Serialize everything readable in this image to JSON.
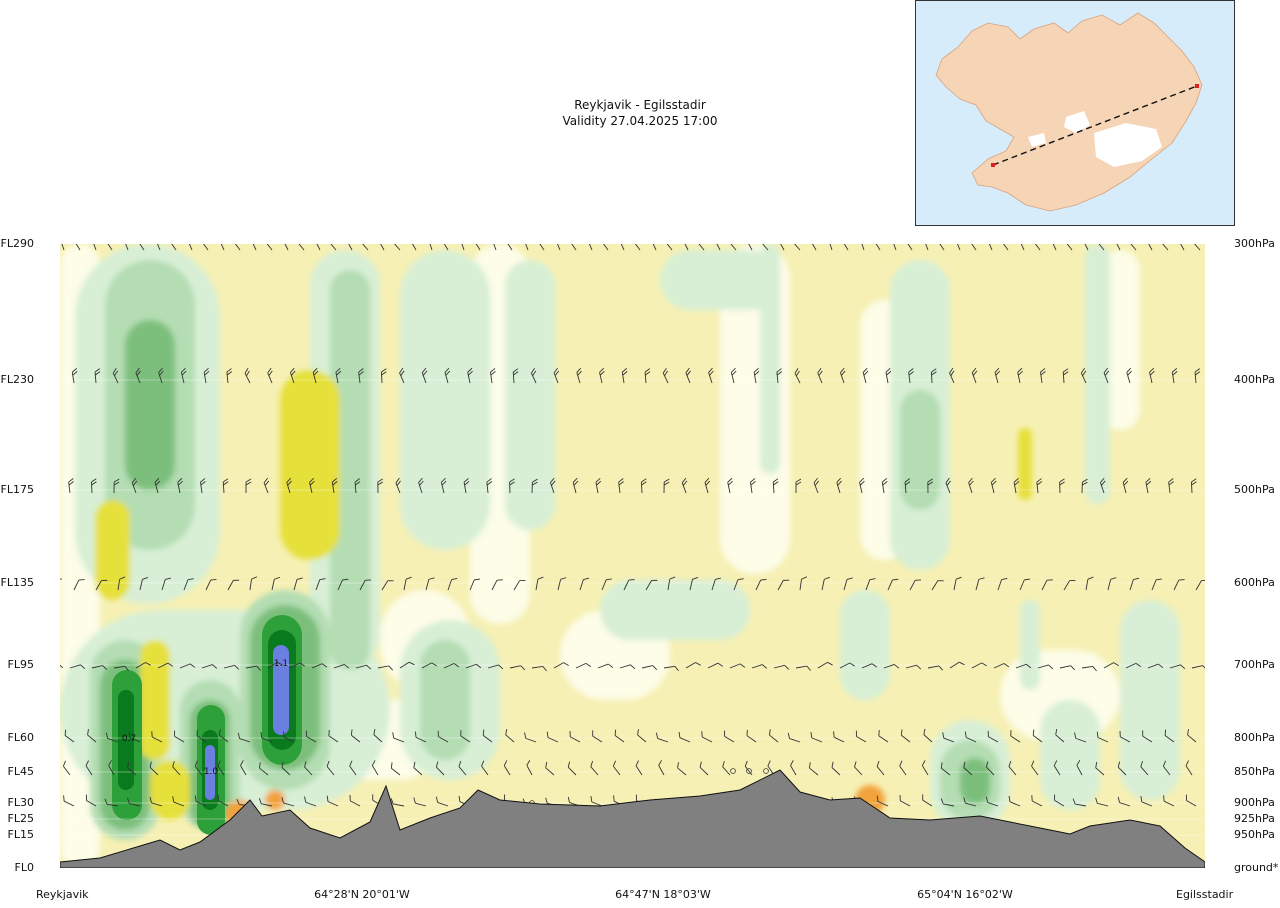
{
  "chart_data": {
    "type": "heatmap",
    "title": "Reykjavik - Egilsstadir",
    "subtitle": "Validity 27.04.2025 17:00",
    "flight_levels": [
      "FL290",
      "FL230",
      "FL175",
      "FL135",
      "FL95",
      "FL60",
      "FL45",
      "FL30",
      "FL25",
      "FL15",
      "FL0"
    ],
    "pressure_levels": [
      "300hPa",
      "400hPa",
      "500hPa",
      "600hPa",
      "700hPa",
      "800hPa",
      "850hPa",
      "900hPa",
      "925hPa",
      "950hPa",
      "ground*"
    ],
    "x_tick_labels": [
      "Reykjavik",
      "64°28'N 20°01'W",
      "64°47'N 18°03'W",
      "65°04'N 16°02'W",
      "Egilsstadir"
    ],
    "annotations": [
      "0.7",
      "1.0",
      "1.1"
    ],
    "colors": {
      "yellow_pale": "#f6f0b4",
      "yellow": "#f2ee9d",
      "yellow_strong": "#e6e03a",
      "cream": "#fdfde8",
      "green_pale": "#d8efd6",
      "green_light": "#b4ddb3",
      "green_mid": "#7bbf7c",
      "green_dark": "#2ea03a",
      "green_deep": "#0a7a1e",
      "blue": "#6a7fe0",
      "orange": "#f2a23a",
      "terrain": "#808080",
      "barb": "#333333"
    }
  },
  "inset_map": {
    "label": "Iceland",
    "route_start": "Reykjavik",
    "route_end": "Egilsstadir",
    "colors": {
      "sea": "#d6ecfb",
      "land": "#f6d4b6",
      "glacier": "#ffffff",
      "route": "#111111",
      "marker": "#e02020"
    }
  }
}
